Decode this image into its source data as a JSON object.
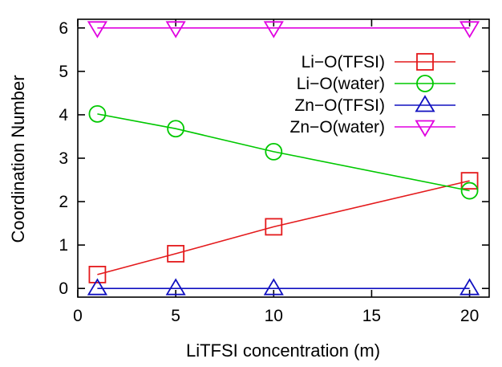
{
  "chart_data": {
    "type": "line",
    "title": "",
    "xlabel": "LiTFSI concentration (m)",
    "ylabel": "Coordination Number",
    "xlim": [
      0,
      21
    ],
    "ylim": [
      -0.2,
      6.2
    ],
    "xticks": [
      0,
      5,
      10,
      15,
      20
    ],
    "yticks": [
      0,
      1,
      2,
      3,
      4,
      5,
      6
    ],
    "grid": false,
    "legend_position": "top-right",
    "x": [
      1,
      5,
      10,
      20
    ],
    "series": [
      {
        "name": "Li−O(TFSI)",
        "marker": "square",
        "color": "#e41a1c",
        "values": [
          0.32,
          0.8,
          1.42,
          2.48
        ]
      },
      {
        "name": "Li−O(water)",
        "marker": "circle",
        "color": "#00c800",
        "values": [
          4.02,
          3.68,
          3.15,
          2.25
        ]
      },
      {
        "name": "Zn−O(TFSI)",
        "marker": "triangle-up",
        "color": "#1010c0",
        "values": [
          0.0,
          0.0,
          0.0,
          0.0
        ]
      },
      {
        "name": "Zn−O(water)",
        "marker": "triangle-down",
        "color": "#e000e0",
        "values": [
          6.0,
          6.0,
          6.0,
          6.0
        ]
      }
    ]
  }
}
